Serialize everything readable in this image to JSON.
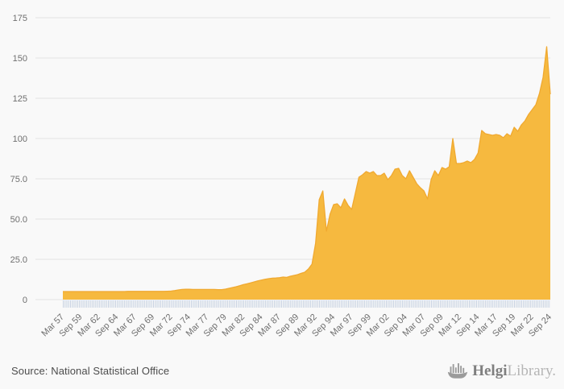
{
  "page": {
    "background": "#f9f9f9"
  },
  "chart_data": {
    "type": "area",
    "title": "",
    "xlabel": "",
    "ylabel": "",
    "grid": true,
    "legend": false,
    "ylim": [
      0,
      175
    ],
    "y_tick_values": [
      175,
      150,
      125,
      100,
      75,
      50,
      25,
      0
    ],
    "y_tick_labels": [
      "175",
      "150",
      "125",
      "100",
      "75.0",
      "50.0",
      "25.0",
      "0"
    ],
    "x_first_label": "Mar 57",
    "x_last_label": "Sep 24",
    "x_label_step": 5,
    "x_tick_labels": [
      "Mar 57",
      "Sep 59",
      "Mar 62",
      "Sep 64",
      "Mar 67",
      "Sep 69",
      "Mar 72",
      "Sep 74",
      "Mar 77",
      "Sep 79",
      "Mar 82",
      "Sep 84",
      "Mar 87",
      "Sep 89",
      "Mar 92",
      "Sep 94",
      "Mar 97",
      "Sep 99",
      "Mar 02",
      "Sep 04",
      "Mar 07",
      "Sep 09",
      "Mar 12",
      "Sep 14",
      "Mar 17",
      "Sep 19",
      "Mar 22",
      "Sep 24"
    ],
    "values": [
      5.0,
      5.0,
      5.0,
      5.0,
      5.0,
      5.0,
      5.0,
      5.0,
      5.0,
      5.0,
      5.0,
      5.0,
      5.0,
      5.0,
      5.0,
      5.0,
      5.0,
      5.0,
      5.1,
      5.1,
      5.1,
      5.1,
      5.1,
      5.1,
      5.1,
      5.1,
      5.1,
      5.1,
      5.1,
      5.2,
      5.3,
      5.6,
      6.0,
      6.3,
      6.4,
      6.4,
      6.3,
      6.3,
      6.3,
      6.3,
      6.3,
      6.3,
      6.3,
      6.2,
      6.2,
      6.5,
      7.0,
      7.5,
      8.0,
      8.6,
      9.3,
      9.8,
      10.4,
      11.0,
      11.6,
      12.1,
      12.6,
      13.0,
      13.3,
      13.4,
      13.6,
      14.0,
      13.8,
      14.5,
      15.0,
      15.5,
      16.3,
      17.0,
      19.0,
      22.0,
      35.0,
      62.0,
      67.5,
      42.5,
      53.0,
      59.0,
      59.5,
      57.0,
      62.5,
      58.5,
      56.0,
      66.0,
      76.0,
      77.5,
      79.5,
      78.5,
      79.5,
      77.0,
      77.0,
      78.5,
      74.5,
      77.0,
      81.0,
      81.5,
      77.0,
      75.0,
      80.0,
      76.0,
      72.0,
      69.5,
      67.5,
      62.5,
      74.5,
      80.0,
      77.0,
      82.0,
      81.0,
      82.5,
      100.0,
      84.5,
      84.5,
      85.0,
      86.0,
      85.0,
      87.0,
      91.0,
      105.0,
      103.0,
      102.5,
      102.0,
      102.5,
      102.0,
      100.5,
      103.0,
      101.5,
      107.0,
      104.5,
      108.5,
      111.0,
      115.0,
      118.0,
      121.0,
      128.0,
      138.0,
      157.0,
      127.5
    ],
    "colors": {
      "area_fill": "#f6b93f",
      "area_line": "#f0a930",
      "grid_line": "#e3e3e3",
      "axis_label": "#6f6f6f",
      "tick_strip": "#c6d1e1"
    }
  },
  "footer": {
    "source": "Source: National Statistical Office",
    "logo": {
      "icon": "viking-ship-bar-chart-icon",
      "brand_bold": "Helgi",
      "brand_light": "Library",
      "suffix": ".",
      "icon_color": "#9b9b9b"
    }
  }
}
